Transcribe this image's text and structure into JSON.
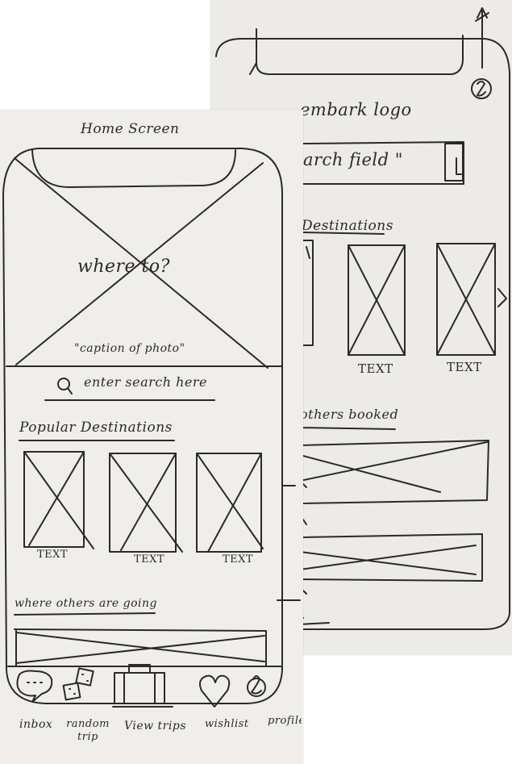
{
  "back_sheet": {
    "logo_text": "embark logo",
    "search_text": "arch field \"",
    "section_destinations": "Destinations",
    "card_labels": [
      "TEXT",
      "TEXT"
    ],
    "section_booked": "others booked"
  },
  "front_sheet": {
    "screen_title": "Home Screen",
    "hero_text": "where to?",
    "hero_caption": "\"caption of photo\"",
    "search_placeholder": "enter search here",
    "popular_title": "Popular Destinations",
    "card_labels": [
      "TEXT",
      "TEXT",
      "TEXT"
    ],
    "others_title": "where others are going",
    "nav": [
      {
        "label": "inbox",
        "icon": "chat-bubble-icon"
      },
      {
        "label": "random trip",
        "icon": "dice-icon"
      },
      {
        "label": "View trips",
        "icon": "suitcase-icon"
      },
      {
        "label": "wishlist",
        "icon": "heart-icon"
      },
      {
        "label": "profile",
        "icon": "profile-icon"
      }
    ]
  }
}
